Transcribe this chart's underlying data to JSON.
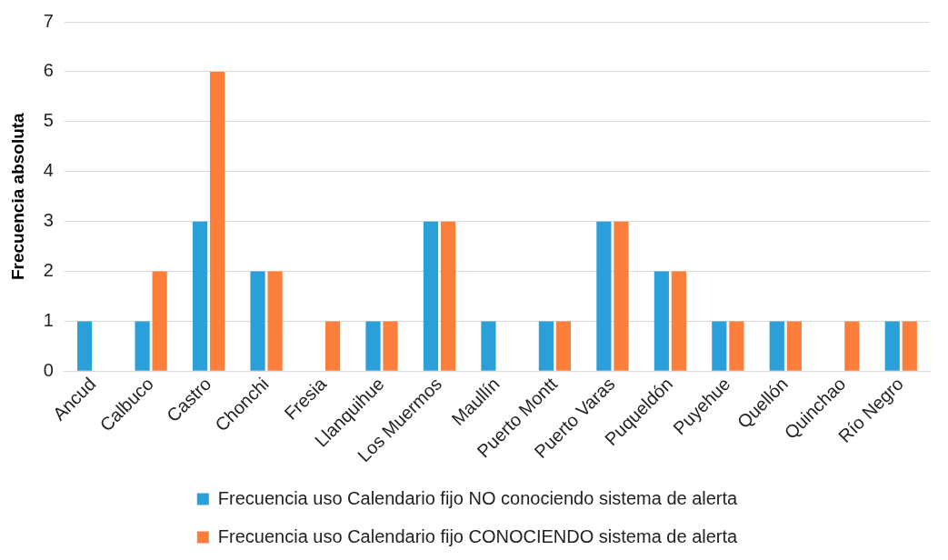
{
  "chart_data": {
    "type": "bar",
    "ylabel": "Frecuencia absoluta",
    "categories": [
      "Ancud",
      "Calbuco",
      "Castro",
      "Chonchi",
      "Fresia",
      "Llanquihue",
      "Los Muermos",
      "Maullín",
      "Puerto Montt",
      "Puerto Varas",
      "Puqueldón",
      "Puyehue",
      "Quellón",
      "Quinchao",
      "Río Negro"
    ],
    "series": [
      {
        "name": "Frecuencia uso Calendario fijo NO conociendo sistema de alerta",
        "color": "#2b9fd9",
        "values": [
          1,
          1,
          3,
          2,
          0,
          1,
          3,
          1,
          1,
          3,
          2,
          1,
          1,
          0,
          1
        ]
      },
      {
        "name": "Frecuencia uso Calendario fijo CONOCIENDO sistema de alerta",
        "color": "#fb7f3b",
        "values": [
          0,
          2,
          6,
          2,
          1,
          1,
          3,
          0,
          1,
          3,
          2,
          1,
          1,
          1,
          1
        ]
      }
    ],
    "ylim": [
      0,
      7
    ],
    "yticks": [
      0,
      1,
      2,
      3,
      4,
      5,
      6,
      7
    ],
    "grid": "y",
    "legend": "bottom"
  }
}
